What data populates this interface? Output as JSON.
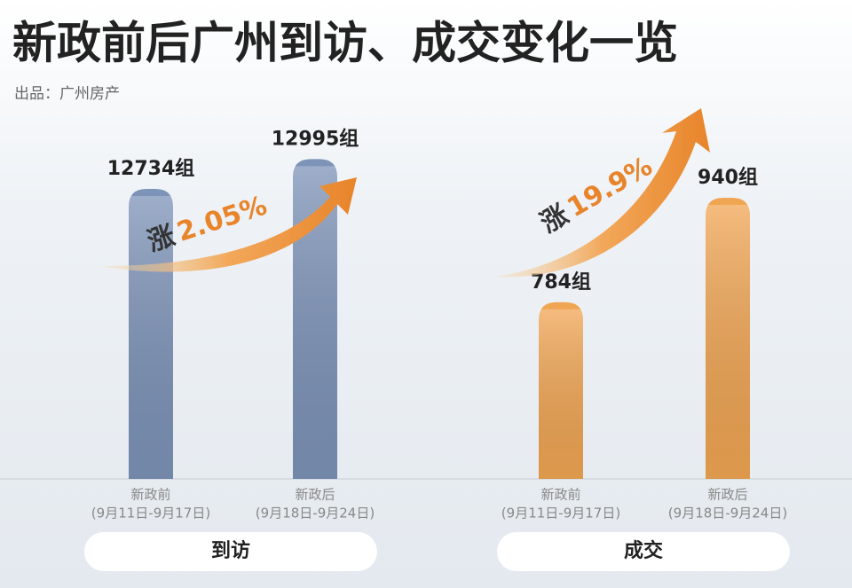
{
  "title": "新政前后广州到访、成交变化一览",
  "subtitle": "出品：广州房产",
  "chart_data": [
    {
      "type": "bar",
      "label": "到访",
      "categories": [
        "新政前",
        "新政后"
      ],
      "subcategories": [
        "(9月11日-9月17日)",
        "(9月18日-9月24日)"
      ],
      "values": [
        12734,
        12995
      ],
      "value_labels": [
        "12734组",
        "12995组"
      ],
      "color": "#7d93b8",
      "ylim": [
        10200,
        13300
      ],
      "annotation_prefix": "涨",
      "annotation": "2.05%"
    },
    {
      "type": "bar",
      "label": "成交",
      "categories": [
        "新政前",
        "新政后"
      ],
      "subcategories": [
        "(9月11日-9月17日)",
        "(9月18日-9月24日)"
      ],
      "values": [
        784,
        940
      ],
      "value_labels": [
        "784组",
        "940组"
      ],
      "color": "#f0a553",
      "ylim": [
        520,
        1050
      ],
      "annotation_prefix": "涨",
      "annotation": "19.9%"
    }
  ]
}
